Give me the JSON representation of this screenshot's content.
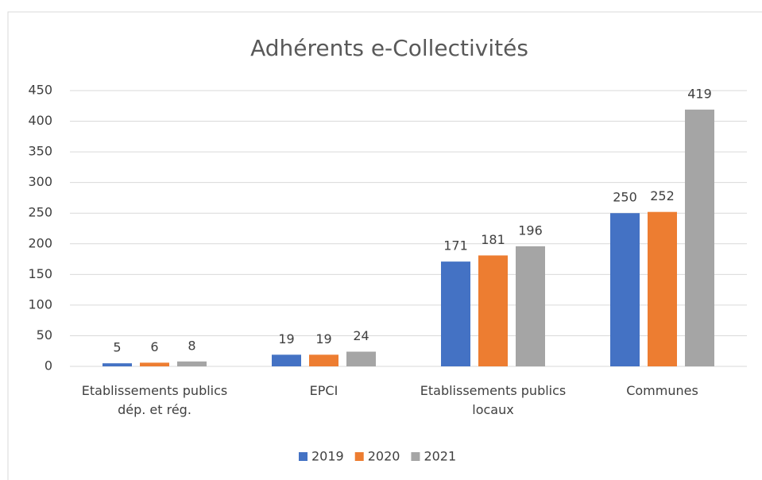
{
  "chart_data": {
    "type": "bar",
    "title": "Adhérents e-Collectivités",
    "categories": [
      "Etablissements publics dép. et rég.",
      "EPCI",
      "Etablissements publics locaux",
      "Communes"
    ],
    "series": [
      {
        "name": "2019",
        "color": "#4472c4",
        "values": [
          5,
          19,
          171,
          250
        ]
      },
      {
        "name": "2020",
        "color": "#ed7d31",
        "values": [
          6,
          19,
          181,
          252
        ]
      },
      {
        "name": "2021",
        "color": "#a5a5a5",
        "values": [
          8,
          24,
          196,
          419
        ]
      }
    ],
    "ylim": [
      0,
      450
    ],
    "yticks": [
      0,
      50,
      100,
      150,
      200,
      250,
      300,
      350,
      400,
      450
    ],
    "grid": true,
    "legend": "bottom"
  }
}
